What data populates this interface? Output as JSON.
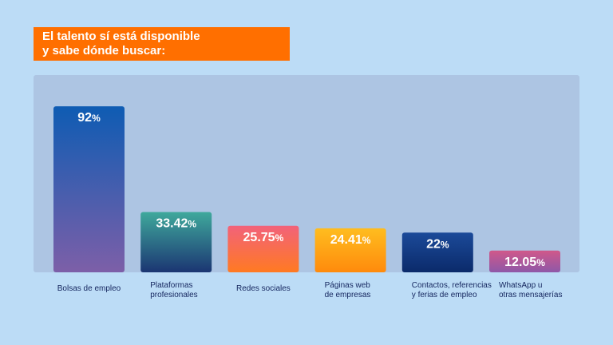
{
  "chart_data": {
    "type": "bar",
    "title_lines": [
      "El talento sí está disponible",
      "y sabe dónde buscar:"
    ],
    "categories": [
      [
        "Bolsas de empleo"
      ],
      [
        "Plataformas",
        "profesionales"
      ],
      [
        "Redes sociales"
      ],
      [
        "Páginas web",
        "de empresas"
      ],
      [
        "Contactos, referencias",
        "y ferias de empleo"
      ],
      [
        "WhatsApp u",
        "otras mensajerías"
      ]
    ],
    "values": [
      92,
      33.42,
      25.75,
      24.41,
      22,
      12.05
    ],
    "value_labels": [
      "92",
      "33.42",
      "25.75",
      "24.41",
      "22",
      "12.05"
    ],
    "unit": "%",
    "ylim": [
      0,
      100
    ],
    "grid": false,
    "bar_colors": [
      [
        "#0e5cb3",
        "#7d5fa8"
      ],
      [
        "#3fa99c",
        "#1b3572"
      ],
      [
        "#f2627a",
        "#ff7a22"
      ],
      [
        "#ffbd1f",
        "#ff8a0c"
      ],
      [
        "#1b4a99",
        "#0b2a6a"
      ],
      [
        "#d0588a",
        "#8e58a8"
      ]
    ]
  }
}
